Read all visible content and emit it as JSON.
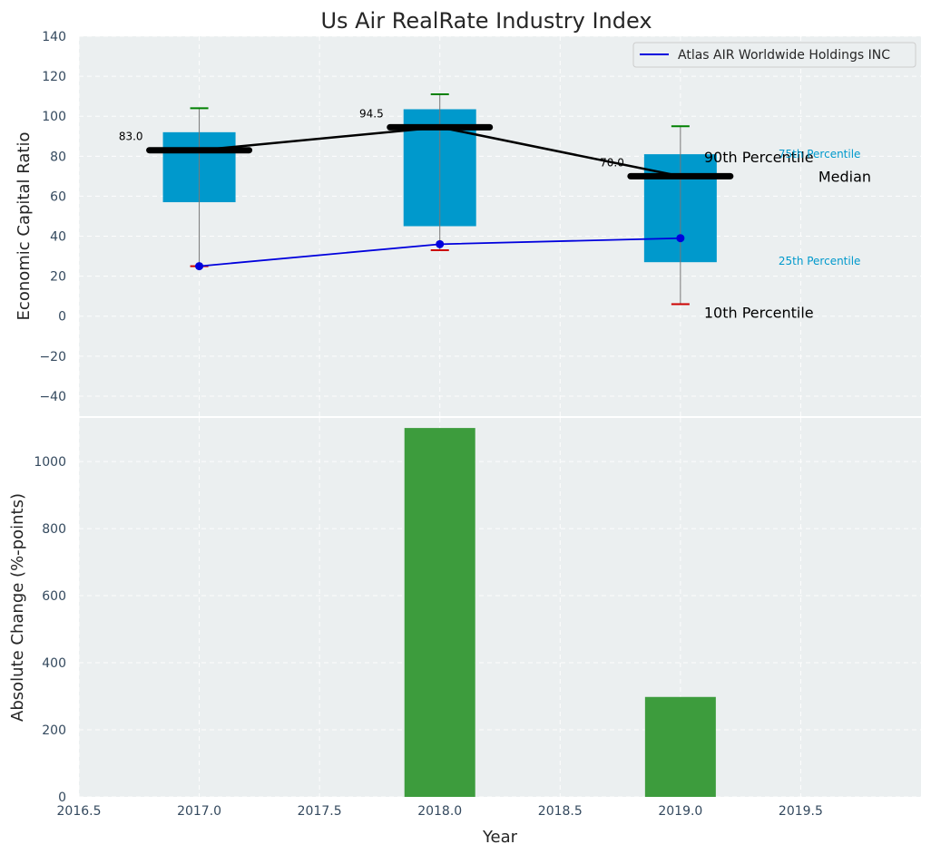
{
  "chart_data": [
    {
      "type": "box",
      "title": "Us Air RealRate Industry Index",
      "ylabel": "Economic Capital Ratio",
      "xlim": [
        2016.5,
        2020.0
      ],
      "ylim": [
        -50,
        140
      ],
      "yticks": [
        140,
        120,
        100,
        80,
        60,
        40,
        20,
        0,
        -20,
        -40
      ],
      "ytick_labels": [
        "140",
        "120",
        "100",
        "80",
        "60",
        "40",
        "20",
        "0",
        "−20",
        "−40"
      ],
      "grid": true,
      "legend": {
        "placement": "top-right",
        "entries": [
          "Atlas AIR Worldwide Holdings INC"
        ]
      },
      "x": [
        2017.0,
        2018.0,
        2019.0
      ],
      "boxes": [
        {
          "x": 2017.0,
          "p10": 25,
          "p25": 57,
          "median": 83,
          "p75": 92,
          "p90": 104,
          "median_label": "83.0"
        },
        {
          "x": 2018.0,
          "p10": 33,
          "p25": 45,
          "median": 94.5,
          "p75": 103.5,
          "p90": 111,
          "median_label": "94.5"
        },
        {
          "x": 2019.0,
          "p10": 6,
          "p25": 27,
          "median": 70,
          "p75": 81,
          "p90": 95,
          "median_label": "70.0"
        }
      ],
      "series": [
        {
          "name": "Atlas AIR Worldwide Holdings INC",
          "color": "#0000dd",
          "x": [
            2017.0,
            2018.0,
            2019.0
          ],
          "values": [
            25,
            36,
            39
          ]
        }
      ],
      "annotations": {
        "p90": "90th Percentile",
        "p75": "75th Percentile",
        "median": "Median",
        "p25": "25th Percentile",
        "p10": "10th Percentile"
      },
      "colors": {
        "box": "#0099cc",
        "median": "#000000",
        "p90_cap": "#008000",
        "p10_cap": "#cc0000",
        "background": "#ebeff0"
      }
    },
    {
      "type": "bar",
      "xlabel": "Year",
      "ylabel": "Absolute Change (%-points)",
      "xlim": [
        2016.5,
        2020.0
      ],
      "ylim": [
        0,
        1130
      ],
      "yticks": [
        1000,
        800,
        600,
        400,
        200,
        0
      ],
      "xticks": [
        2016.5,
        2017.0,
        2017.5,
        2018.0,
        2018.5,
        2019.0,
        2019.5
      ],
      "xtick_labels": [
        "2016.5",
        "2017.0",
        "2017.5",
        "2018.0",
        "2018.5",
        "2019.0",
        "2019.5"
      ],
      "grid": true,
      "x": [
        2018.0,
        2019.0
      ],
      "values": [
        1100,
        298
      ],
      "colors": {
        "bar": "#3d9c3d",
        "background": "#ebeff0"
      }
    }
  ]
}
